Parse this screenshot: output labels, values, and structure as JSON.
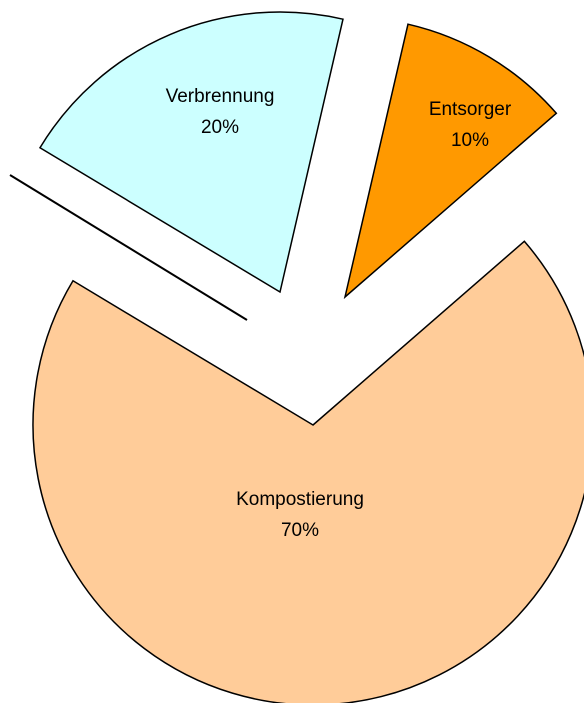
{
  "chart_data": {
    "type": "pie",
    "categories": [
      "Verbrennung",
      "Entsorger",
      "Kompostierung"
    ],
    "values": [
      20,
      10,
      70
    ],
    "value_labels": [
      "20%",
      "10%",
      "70%"
    ],
    "colors": [
      "#ccffff",
      "#ff9900",
      "#ffcc99"
    ]
  }
}
